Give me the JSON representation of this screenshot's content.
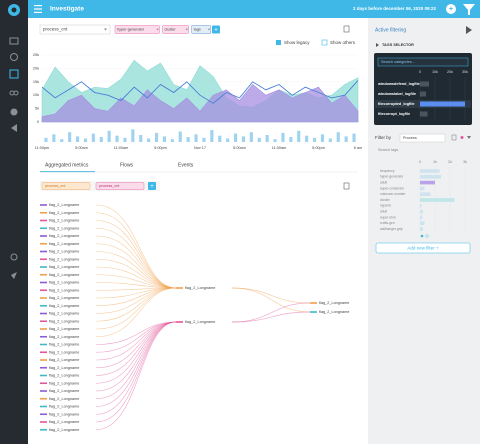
{
  "header": {
    "title": "Investigate",
    "timerange": "2 days before december 06, 2020 09:22"
  },
  "toolbar": {
    "dropdown": "process_cnt",
    "chips": [
      "hyper-generator",
      "cluster",
      "tags"
    ],
    "checkboxes": [
      "Show legacy",
      "Show others"
    ]
  },
  "chart_data": {
    "type": "area",
    "x": [
      0,
      1,
      2,
      3,
      4,
      5,
      6,
      7,
      8,
      9,
      10,
      11,
      12,
      13,
      14,
      15,
      16,
      17,
      18,
      19,
      20,
      21,
      22,
      23,
      24
    ],
    "xlim": [
      0,
      24
    ],
    "xticks": [
      {
        "value": 0,
        "label": "11:00pm"
      },
      {
        "value": 3,
        "label": "5:00am"
      },
      {
        "value": 6,
        "label": "11:00am"
      },
      {
        "value": 9,
        "label": "5:00pm"
      },
      {
        "value": 12,
        "label": "Nov 17"
      },
      {
        "value": 15,
        "label": "5:00am"
      },
      {
        "value": 18,
        "label": "11:00am"
      },
      {
        "value": 21,
        "label": "5:00pm"
      },
      {
        "value": 24,
        "label": "6 am"
      }
    ],
    "ylim": [
      0,
      25000
    ],
    "yticks": [
      0,
      {
        "value": 5000,
        "label": "5k"
      },
      {
        "value": 10000,
        "label": "10k"
      },
      {
        "value": 15000,
        "label": "15k"
      },
      {
        "value": 20000,
        "label": "20k"
      },
      {
        "value": 25000,
        "label": "25k"
      }
    ],
    "grid": true,
    "series": [
      {
        "style": "area",
        "color": "#8fdcd6",
        "values": [
          12000,
          20500,
          15000,
          11000,
          13000,
          12500,
          16000,
          23000,
          19000,
          22000,
          14000,
          12000,
          21000,
          17000,
          9000,
          6000,
          5500,
          8000,
          12000,
          10000,
          11000,
          9000,
          10000,
          14000,
          16500
        ]
      },
      {
        "style": "area",
        "color": "#a58fe0",
        "values": [
          2000,
          3000,
          8000,
          10000,
          5000,
          4000,
          9000,
          6000,
          12000,
          8000,
          5000,
          9000,
          4000,
          10000,
          12000,
          8000,
          14000,
          10000,
          12000,
          9000,
          11000,
          13000,
          7000,
          10000,
          4000
        ]
      },
      {
        "style": "line",
        "color": "#4a7fd6",
        "values": [
          13000,
          9000,
          12000,
          15000,
          11000,
          10000,
          8000,
          13000,
          9000,
          14000,
          11000,
          15000,
          10000,
          7000,
          11000,
          9000,
          15000,
          12000,
          14000,
          10000,
          13000,
          11000,
          9000,
          10000,
          15500
        ]
      }
    ],
    "volume": {
      "color": "#9fd3ef",
      "ylim": [
        0,
        100
      ],
      "values": [
        30,
        55,
        20,
        70,
        40,
        25,
        60,
        35,
        80,
        45,
        30,
        90,
        50,
        25,
        65,
        40,
        20,
        75,
        35,
        55,
        30,
        85,
        45,
        25,
        60,
        40,
        70,
        30,
        50,
        20,
        65,
        35,
        80,
        45,
        30,
        55,
        25,
        70,
        40,
        60
      ]
    }
  },
  "tabs": [
    "Aggregated metrics",
    "Flows",
    "Events"
  ],
  "metric_chips": [
    "process_cnt",
    "process_cnt"
  ],
  "sankey": {
    "left": [
      {
        "label": "flag_2_Longname",
        "color": "#8e5bd6",
        "to": 0
      },
      {
        "label": "flag_2_Longname",
        "color": "#f0a04b",
        "to": 0
      },
      {
        "label": "flag_2_Longname",
        "color": "#e2579a",
        "to": 0
      },
      {
        "label": "flag_2_Longname",
        "color": "#3fb8c8",
        "to": 0
      },
      {
        "label": "flag_2_Longname",
        "color": "#8e5bd6",
        "to": 0
      },
      {
        "label": "flag_2_Longname",
        "color": "#f0a04b",
        "to": 0
      },
      {
        "label": "flag_2_Longname",
        "color": "#8e5bd6",
        "to": 0
      },
      {
        "label": "flag_2_Longname",
        "color": "#e2579a",
        "to": 0
      },
      {
        "label": "flag_2_Longname",
        "color": "#3fb8c8",
        "to": 0
      },
      {
        "label": "flag_2_Longname",
        "color": "#f0a04b",
        "to": 0
      },
      {
        "label": "flag_2_Longname",
        "color": "#8e5bd6",
        "to": 0
      },
      {
        "label": "flag_2_Longname",
        "color": "#e2579a",
        "to": 0
      },
      {
        "label": "flag_2_Longname",
        "color": "#f0a04b",
        "to": 0
      },
      {
        "label": "flag_2_Longname",
        "color": "#3fb8c8",
        "to": 0
      },
      {
        "label": "flag_2_Longname",
        "color": "#8e5bd6",
        "to": 0
      },
      {
        "label": "flag_2_Longname",
        "color": "#e2579a",
        "to": 0
      },
      {
        "label": "flag_2_Longname",
        "color": "#f0a04b",
        "to": 0
      },
      {
        "label": "flag_2_Longname",
        "color": "#8e5bd6",
        "to": 0
      },
      {
        "label": "flag_2_Longname",
        "color": "#3fb8c8",
        "to": 1
      },
      {
        "label": "flag_2_Longname",
        "color": "#e2579a",
        "to": 1
      },
      {
        "label": "flag_2_Longname",
        "color": "#f0a04b",
        "to": 1
      },
      {
        "label": "flag_2_Longname",
        "color": "#8e5bd6",
        "to": 1
      },
      {
        "label": "flag_2_Longname",
        "color": "#3fb8c8",
        "to": 1
      },
      {
        "label": "flag_2_Longname",
        "color": "#e2579a",
        "to": 1
      },
      {
        "label": "flag_2_Longname",
        "color": "#8e5bd6",
        "to": 1
      },
      {
        "label": "flag_2_Longname",
        "color": "#f0a04b",
        "to": 1
      },
      {
        "label": "flag_2_Longname",
        "color": "#3fb8c8",
        "to": 1
      },
      {
        "label": "flag_2_Longname",
        "color": "#8e5bd6",
        "to": 1
      },
      {
        "label": "flag_2_Longname",
        "color": "#e2579a",
        "to": 1
      },
      {
        "label": "flag_2_Longname",
        "color": "#3fb8c8",
        "to": 1
      }
    ],
    "middle": [
      {
        "label": "flag_2_Longname",
        "color": "#f0a04b"
      },
      {
        "label": "flag_2_Longname",
        "color": "#e2579a"
      }
    ],
    "right": [
      {
        "label": "flag_2_Longname",
        "color": "#f0a04b"
      },
      {
        "label": "flag_2_Longname",
        "color": "#3fb8c8"
      }
    ]
  },
  "filter_panel": {
    "title": "Active filtering",
    "section": "TAGS SELECTOR",
    "search": "Search categories...",
    "ticks": [
      0,
      {
        "value": 10000,
        "label": "10k"
      },
      {
        "value": 20000,
        "label": "20k"
      },
      {
        "value": 30000,
        "label": "30k"
      }
    ],
    "xlim": [
      0,
      30000
    ],
    "rows": [
      {
        "label": "windowsdefend_logfile",
        "value": 6000
      },
      {
        "label": "windowslabel_logfile",
        "value": 4000
      },
      {
        "label": "filecorrupted_logfile",
        "value": 30000
      },
      {
        "label": "filecorrupt_logfile",
        "value": 5000
      }
    ],
    "filter_by": "Filter by",
    "filter_value": "Process",
    "search_tags": "Search tags",
    "tag_ticks": [
      0,
      {
        "value": 1000,
        "label": "1k"
      },
      {
        "value": 2000,
        "label": "2k"
      },
      {
        "value": 3000,
        "label": "3k"
      }
    ],
    "tag_xlim": [
      0,
      3000
    ],
    "tags": [
      {
        "label": "frequency",
        "value": 1300,
        "color": "#cfe3ef"
      },
      {
        "label": "hyper-generator",
        "value": 1400,
        "color": "#cfe3ef"
      },
      {
        "label": "adult",
        "value": 1000,
        "color": "#b9a3e8"
      },
      {
        "label": "super-contender",
        "value": 300,
        "color": "#cfe3ef"
      },
      {
        "label": "unknown-number",
        "value": 700,
        "color": "#cfe3ef"
      },
      {
        "label": "cluster",
        "value": 2300,
        "color": "#bfe6e6"
      },
      {
        "label": "hyperid",
        "value": 100,
        "color": "#cfe3ef"
      },
      {
        "label": "adult",
        "value": 200,
        "color": "#cfe3ef"
      },
      {
        "label": "super-shot",
        "value": 150,
        "color": "#cfe3ef"
      },
      {
        "label": "crafts-gen",
        "value": 300,
        "color": "#cfe3ef"
      },
      {
        "label": "wallhanger-grip",
        "value": 200,
        "color": "#cfe3ef"
      }
    ],
    "add_button": "Add new filter +"
  }
}
